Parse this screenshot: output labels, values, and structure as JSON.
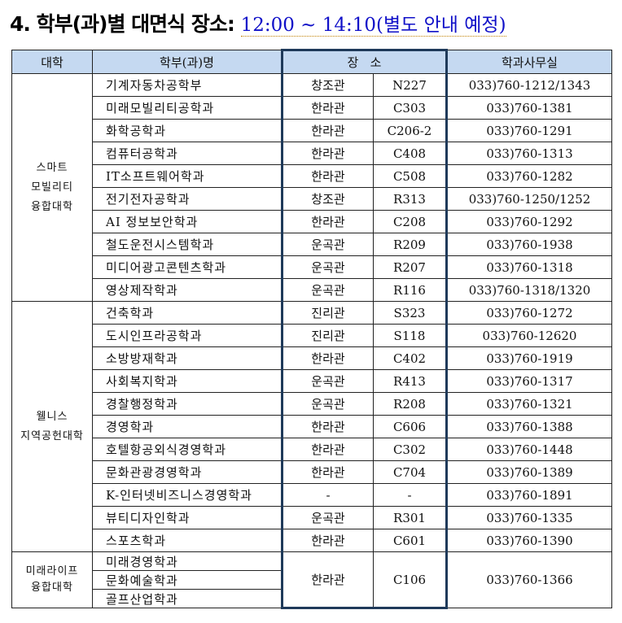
{
  "title": {
    "main": "4. 학부(과)별 대면식 장소:",
    "sub": "12:00 ~ 14:10(별도 안내 예정)"
  },
  "headers": {
    "college": "대학",
    "dept": "학부(과)명",
    "location": "장   소",
    "office": "학과사무실"
  },
  "groups": [
    {
      "college": [
        "스마트",
        "모빌리티",
        "융합대학"
      ],
      "rows": [
        [
          "기계자동차공학부",
          "창조관",
          "N227",
          "033)760-1212/1343"
        ],
        [
          "미래모빌리티공학과",
          "한라관",
          "C303",
          "033)760-1381"
        ],
        [
          "화학공학과",
          "한라관",
          "C206-2",
          "033)760-1291"
        ],
        [
          "컴퓨터공학과",
          "한라관",
          "C408",
          "033)760-1313"
        ],
        [
          "IT소프트웨어학과",
          "한라관",
          "C508",
          "033)760-1282"
        ],
        [
          "전기전자공학과",
          "창조관",
          "R313",
          "033)760-1250/1252"
        ],
        [
          "AI 정보보안학과",
          "한라관",
          "C208",
          "033)760-1292"
        ],
        [
          "철도운전시스템학과",
          "운곡관",
          "R209",
          "033)760-1938"
        ],
        [
          "미디어광고콘텐츠학과",
          "운곡관",
          "R207",
          "033)760-1318"
        ],
        [
          "영상제작학과",
          "운곡관",
          "R116",
          "033)760-1318/1320"
        ]
      ]
    },
    {
      "college": [
        "웰니스",
        "지역공헌대학"
      ],
      "rows": [
        [
          "건축학과",
          "진리관",
          "S323",
          "033)760-1272"
        ],
        [
          "도시인프라공학과",
          "진리관",
          "S118",
          "033)760-12620"
        ],
        [
          "소방방재학과",
          "한라관",
          "C402",
          "033)760-1919"
        ],
        [
          "사회복지학과",
          "운곡관",
          "R413",
          "033)760-1317"
        ],
        [
          "경찰행정학과",
          "운곡관",
          "R208",
          "033)760-1321"
        ],
        [
          "경영학과",
          "한라관",
          "C606",
          "033)760-1388"
        ],
        [
          "호텔항공외식경영학과",
          "한라관",
          "C302",
          "033)760-1448"
        ],
        [
          "문화관광경영학과",
          "한라관",
          "C704",
          "033)760-1389"
        ],
        [
          "K-인터넷비즈니스경영학과",
          "-",
          "-",
          "033)760-1891"
        ],
        [
          "뷰티디자인학과",
          "운곡관",
          "R301",
          "033)760-1335"
        ],
        [
          "스포츠학과",
          "한라관",
          "C601",
          "033)760-1390"
        ]
      ]
    },
    {
      "college": [
        "미래라이프",
        "융합대학"
      ],
      "depts": [
        "미래경영학과",
        "문화예술학과",
        "골프산업학과"
      ],
      "building": "한라관",
      "room": "C106",
      "office": "033)760-1366"
    }
  ]
}
